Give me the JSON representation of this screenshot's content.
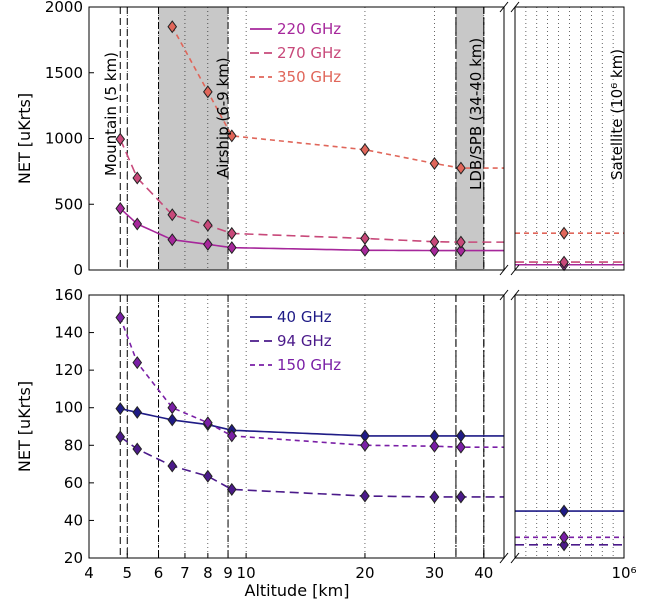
{
  "chart_data": [
    {
      "type": "line",
      "panel": "top",
      "xlabel": "",
      "ylabel": "NET [uKrts]",
      "ylim": [
        0,
        2000
      ],
      "yticks": [
        "0",
        "500",
        "1000",
        "1500",
        "2000"
      ],
      "xscale": "log",
      "xlim": [
        4,
        45
      ],
      "shaded_regions": [
        {
          "label": "Airship (6-9 km)",
          "range": [
            6,
            9
          ]
        },
        {
          "label": "LDB/SPB (34-40 km)",
          "range": [
            34,
            40
          ]
        }
      ],
      "vertical_lines": [
        {
          "label": "Mountain (5 km)",
          "x": 4.8
        }
      ],
      "satellite_panel": {
        "label": "Satellite (10⁶ km)",
        "x_tick": "10⁶",
        "ylim": [
          0,
          2000
        ]
      },
      "series": [
        {
          "name": "220 GHz",
          "color": "#a6279b",
          "style": "solid",
          "points": [
            [
              4.8,
              468
            ],
            [
              5.3,
              350
            ],
            [
              6.5,
              230
            ],
            [
              8,
              195
            ],
            [
              9.2,
              170
            ],
            [
              20,
              150
            ],
            [
              30,
              148
            ],
            [
              35,
              148
            ]
          ],
          "satellite": 40
        },
        {
          "name": "270 GHz",
          "color": "#c8497a",
          "style": "dashed",
          "points": [
            [
              4.8,
              995
            ],
            [
              5.3,
              700
            ],
            [
              6.5,
              420
            ],
            [
              8,
              340
            ],
            [
              9.2,
              278
            ],
            [
              20,
              240
            ],
            [
              30,
              215
            ],
            [
              35,
              212
            ]
          ],
          "satellite": 60
        },
        {
          "name": "350 GHz",
          "color": "#e0665a",
          "style": "dotted",
          "points": [
            [
              6.5,
              1850
            ],
            [
              8,
              1355
            ],
            [
              9.2,
              1020
            ],
            [
              20,
              915
            ],
            [
              30,
              810
            ],
            [
              35,
              775
            ]
          ],
          "satellite": 280
        }
      ]
    },
    {
      "type": "line",
      "panel": "bottom",
      "xlabel": "Altitude [km]",
      "ylabel": "NET [uKrts]",
      "ylim": [
        20,
        160
      ],
      "yticks": [
        "20",
        "40",
        "60",
        "80",
        "100",
        "120",
        "140",
        "160"
      ],
      "xscale": "log",
      "xlim": [
        4,
        45
      ],
      "xticks": [
        "4",
        "5",
        "6",
        "7",
        "8",
        "9",
        "10",
        "20",
        "30",
        "40"
      ],
      "satellite_panel": {
        "x_tick": "10⁶"
      },
      "series": [
        {
          "name": "40 GHz",
          "color": "#1f1b86",
          "style": "solid",
          "points": [
            [
              4.8,
              99.5
            ],
            [
              5.3,
              97.5
            ],
            [
              6.5,
              93.5
            ],
            [
              8,
              91
            ],
            [
              9.2,
              88
            ],
            [
              20,
              85
            ],
            [
              30,
              85
            ],
            [
              35,
              85
            ]
          ],
          "satellite": 45
        },
        {
          "name": "94 GHz",
          "color": "#4b1a8a",
          "style": "dashed",
          "points": [
            [
              4.8,
              84.5
            ],
            [
              5.3,
              78
            ],
            [
              6.5,
              69
            ],
            [
              8,
              63.5
            ],
            [
              9.2,
              56.5
            ],
            [
              20,
              53
            ],
            [
              30,
              52.5
            ],
            [
              35,
              52.5
            ]
          ],
          "satellite": 27
        },
        {
          "name": "150 GHz",
          "color": "#7a1fa6",
          "style": "dotted",
          "points": [
            [
              4.8,
              148
            ],
            [
              5.3,
              124
            ],
            [
              6.5,
              100
            ],
            [
              8,
              92
            ],
            [
              9.2,
              85
            ],
            [
              20,
              80
            ],
            [
              30,
              79.5
            ],
            [
              35,
              79
            ]
          ],
          "satellite": 31
        }
      ]
    }
  ]
}
